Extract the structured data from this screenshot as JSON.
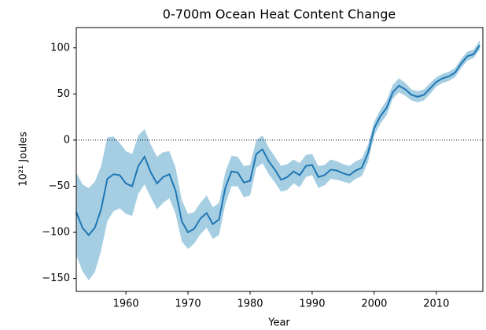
{
  "chart_data": {
    "type": "line",
    "title": "0-700m Ocean Heat Content Change",
    "x_label": "Year",
    "y_label": "10²¹ Joules",
    "x": [
      1952,
      1953,
      1954,
      1955,
      1956,
      1957,
      1958,
      1959,
      1960,
      1961,
      1962,
      1963,
      1964,
      1965,
      1966,
      1967,
      1968,
      1969,
      1970,
      1971,
      1972,
      1973,
      1974,
      1975,
      1976,
      1977,
      1978,
      1979,
      1980,
      1981,
      1982,
      1983,
      1984,
      1985,
      1986,
      1987,
      1988,
      1989,
      1990,
      1991,
      1992,
      1993,
      1994,
      1995,
      1996,
      1997,
      1998,
      1999,
      2000,
      2001,
      2002,
      2003,
      2004,
      2005,
      2006,
      2007,
      2008,
      2009,
      2010,
      2011,
      2012,
      2013,
      2014,
      2015,
      2016,
      2017
    ],
    "values": [
      -78,
      -95,
      -103,
      -95,
      -75,
      -42,
      -37,
      -38,
      -47,
      -50,
      -28,
      -18,
      -35,
      -47,
      -40,
      -37,
      -55,
      -88,
      -100,
      -96,
      -85,
      -79,
      -91,
      -86,
      -52,
      -34,
      -35,
      -46,
      -44,
      -15,
      -10,
      -23,
      -32,
      -43,
      -40,
      -34,
      -38,
      -28,
      -27,
      -40,
      -38,
      -32,
      -33,
      -36,
      -38,
      -33,
      -30,
      -14,
      13,
      26,
      35,
      52,
      59,
      55,
      49,
      47,
      49,
      56,
      63,
      67,
      69,
      73,
      83,
      91,
      93,
      103
    ],
    "upper": [
      -35,
      -48,
      -52,
      -45,
      -28,
      3,
      4,
      -3,
      -12,
      -15,
      5,
      12,
      -5,
      -18,
      -13,
      -12,
      -30,
      -65,
      -80,
      -78,
      -68,
      -60,
      -73,
      -68,
      -35,
      -17,
      -18,
      -28,
      -27,
      0,
      5,
      -8,
      -18,
      -28,
      -26,
      -21,
      -25,
      -16,
      -15,
      -28,
      -27,
      -21,
      -23,
      -26,
      -28,
      -23,
      -20,
      -5,
      20,
      33,
      43,
      60,
      67,
      62,
      55,
      53,
      55,
      62,
      68,
      72,
      74,
      78,
      88,
      96,
      98,
      108
    ],
    "lower": [
      -125,
      -142,
      -152,
      -143,
      -120,
      -88,
      -77,
      -74,
      -80,
      -82,
      -58,
      -48,
      -62,
      -75,
      -68,
      -63,
      -80,
      -110,
      -118,
      -112,
      -102,
      -95,
      -107,
      -103,
      -70,
      -50,
      -50,
      -62,
      -60,
      -30,
      -25,
      -37,
      -46,
      -56,
      -54,
      -47,
      -51,
      -40,
      -38,
      -52,
      -49,
      -42,
      -43,
      -45,
      -47,
      -42,
      -39,
      -24,
      5,
      18,
      27,
      45,
      52,
      48,
      43,
      41,
      43,
      50,
      58,
      62,
      64,
      68,
      78,
      86,
      89,
      98
    ],
    "color": "#1f77b4",
    "band_color": "#a6cee3",
    "xlim": [
      1952,
      2017.5
    ],
    "ylim": [
      -164,
      122
    ],
    "xticks": [
      1960,
      1970,
      1980,
      1990,
      2000,
      2010
    ],
    "yticks": [
      {
        "value": -150,
        "label": "−150"
      },
      {
        "value": -100,
        "label": "−100"
      },
      {
        "value": -50,
        "label": "−50"
      },
      0,
      50,
      100
    ],
    "hline": 0
  }
}
